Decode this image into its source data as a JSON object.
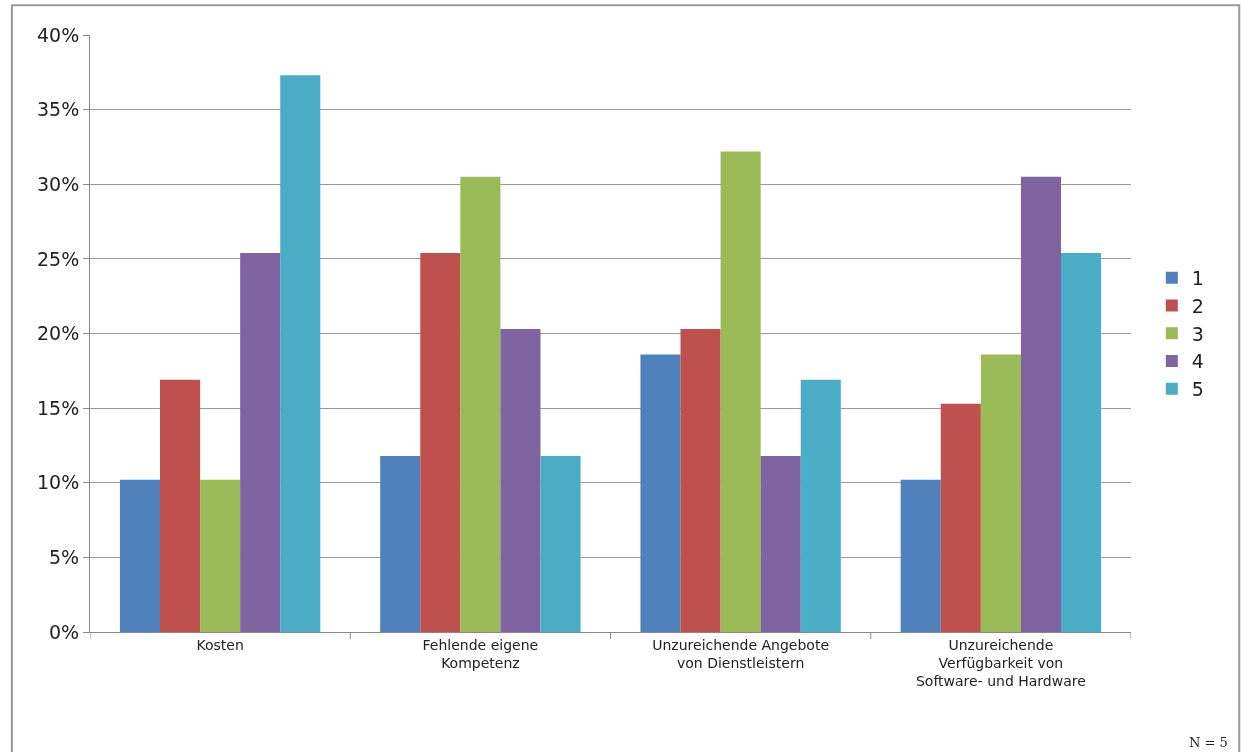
{
  "chart_data": {
    "type": "bar",
    "categories": [
      "Kosten",
      "Fehlende eigene\nKompetenz",
      "Unzureichende Angebote\nvon Dienstleistern",
      "Unzureichende\nVerfügbarkeit von\nSoftware- und Hardware"
    ],
    "series": [
      {
        "name": "1",
        "color": "#4f81bd",
        "values": [
          10.2,
          11.8,
          18.6,
          10.2
        ]
      },
      {
        "name": "2",
        "color": "#c0504d",
        "values": [
          16.9,
          25.4,
          20.3,
          15.3
        ]
      },
      {
        "name": "3",
        "color": "#9bbb59",
        "values": [
          10.2,
          30.5,
          32.2,
          18.6
        ]
      },
      {
        "name": "4",
        "color": "#8064a2",
        "values": [
          25.4,
          20.3,
          11.8,
          30.5
        ]
      },
      {
        "name": "5",
        "color": "#4bacc6",
        "values": [
          37.3,
          11.8,
          16.9,
          25.4
        ]
      }
    ],
    "ylim": [
      0,
      40
    ],
    "yticks": [
      {
        "value": 0,
        "label": "0%"
      },
      {
        "value": 5,
        "label": "5%"
      },
      {
        "value": 10,
        "label": "10%"
      },
      {
        "value": 15,
        "label": "15%"
      },
      {
        "value": 20,
        "label": "20%"
      },
      {
        "value": 25,
        "label": "25%"
      },
      {
        "value": 30,
        "label": "30%"
      },
      {
        "value": 35,
        "label": "35%"
      },
      {
        "value": 40,
        "label": "40%"
      }
    ],
    "grid": "y",
    "legend": "right",
    "annotations": [
      "N = 5"
    ]
  }
}
